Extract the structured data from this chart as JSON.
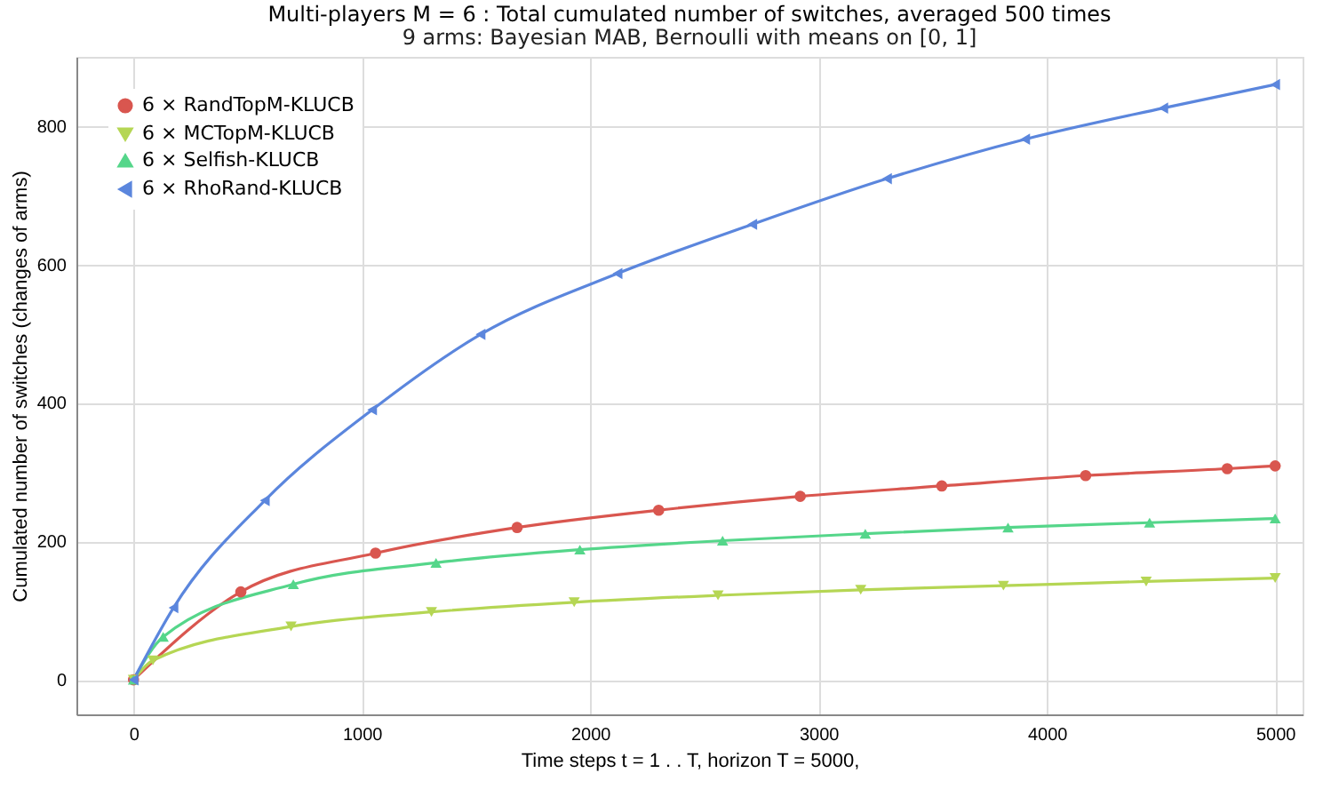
{
  "chart_data": {
    "type": "line",
    "title": "Multi-players M = 6 : Total cumulated number of switches, averaged 500 times",
    "subtitle": "9 arms: Bayesian MAB, Bernoulli with means on [0, 1]",
    "xlabel": "Time steps t = 1 . . T, horizon T = 5000,",
    "ylabel": "Cumulated number of switches (changes of arms)",
    "xlim": [
      -250,
      5120
    ],
    "ylim": [
      -50,
      900
    ],
    "xticks": [
      0,
      1000,
      2000,
      3000,
      4000,
      5000
    ],
    "yticks": [
      0,
      200,
      400,
      600,
      800
    ],
    "grid": true,
    "legend": "top left",
    "series": [
      {
        "name": "6 × RandTopM-KLUCB",
        "color": "#d9564f",
        "marker": "circle",
        "x": [
          0,
          470,
          1060,
          1680,
          2300,
          2920,
          3540,
          4170,
          4790,
          5000
        ],
        "values": [
          0,
          127,
          183,
          220,
          245,
          265,
          280,
          295,
          305,
          309
        ]
      },
      {
        "name": "6 × MCTopM-KLUCB",
        "color": "#b5d654",
        "marker": "triangle-down",
        "x": [
          0,
          85,
          690,
          1305,
          1930,
          2560,
          3185,
          3810,
          4435,
          5000
        ],
        "values": [
          0,
          28,
          77,
          98,
          112,
          122,
          130,
          136,
          142,
          147
        ]
      },
      {
        "name": "6 × Selfish-KLUCB",
        "color": "#55d68a",
        "marker": "triangle",
        "x": [
          0,
          130,
          700,
          1325,
          1955,
          2580,
          3205,
          3830,
          4450,
          5000
        ],
        "values": [
          0,
          62,
          138,
          169,
          188,
          201,
          211,
          220,
          227,
          233
        ]
      },
      {
        "name": "6 × RhoRand-KLUCB",
        "color": "#5b86dd",
        "marker": "triangle-left",
        "x": [
          0,
          175,
          575,
          1045,
          1520,
          2120,
          2710,
          3300,
          3905,
          4510,
          5000
        ],
        "values": [
          0,
          104,
          259,
          390,
          499,
          587,
          658,
          724,
          781,
          826,
          860
        ]
      }
    ]
  }
}
